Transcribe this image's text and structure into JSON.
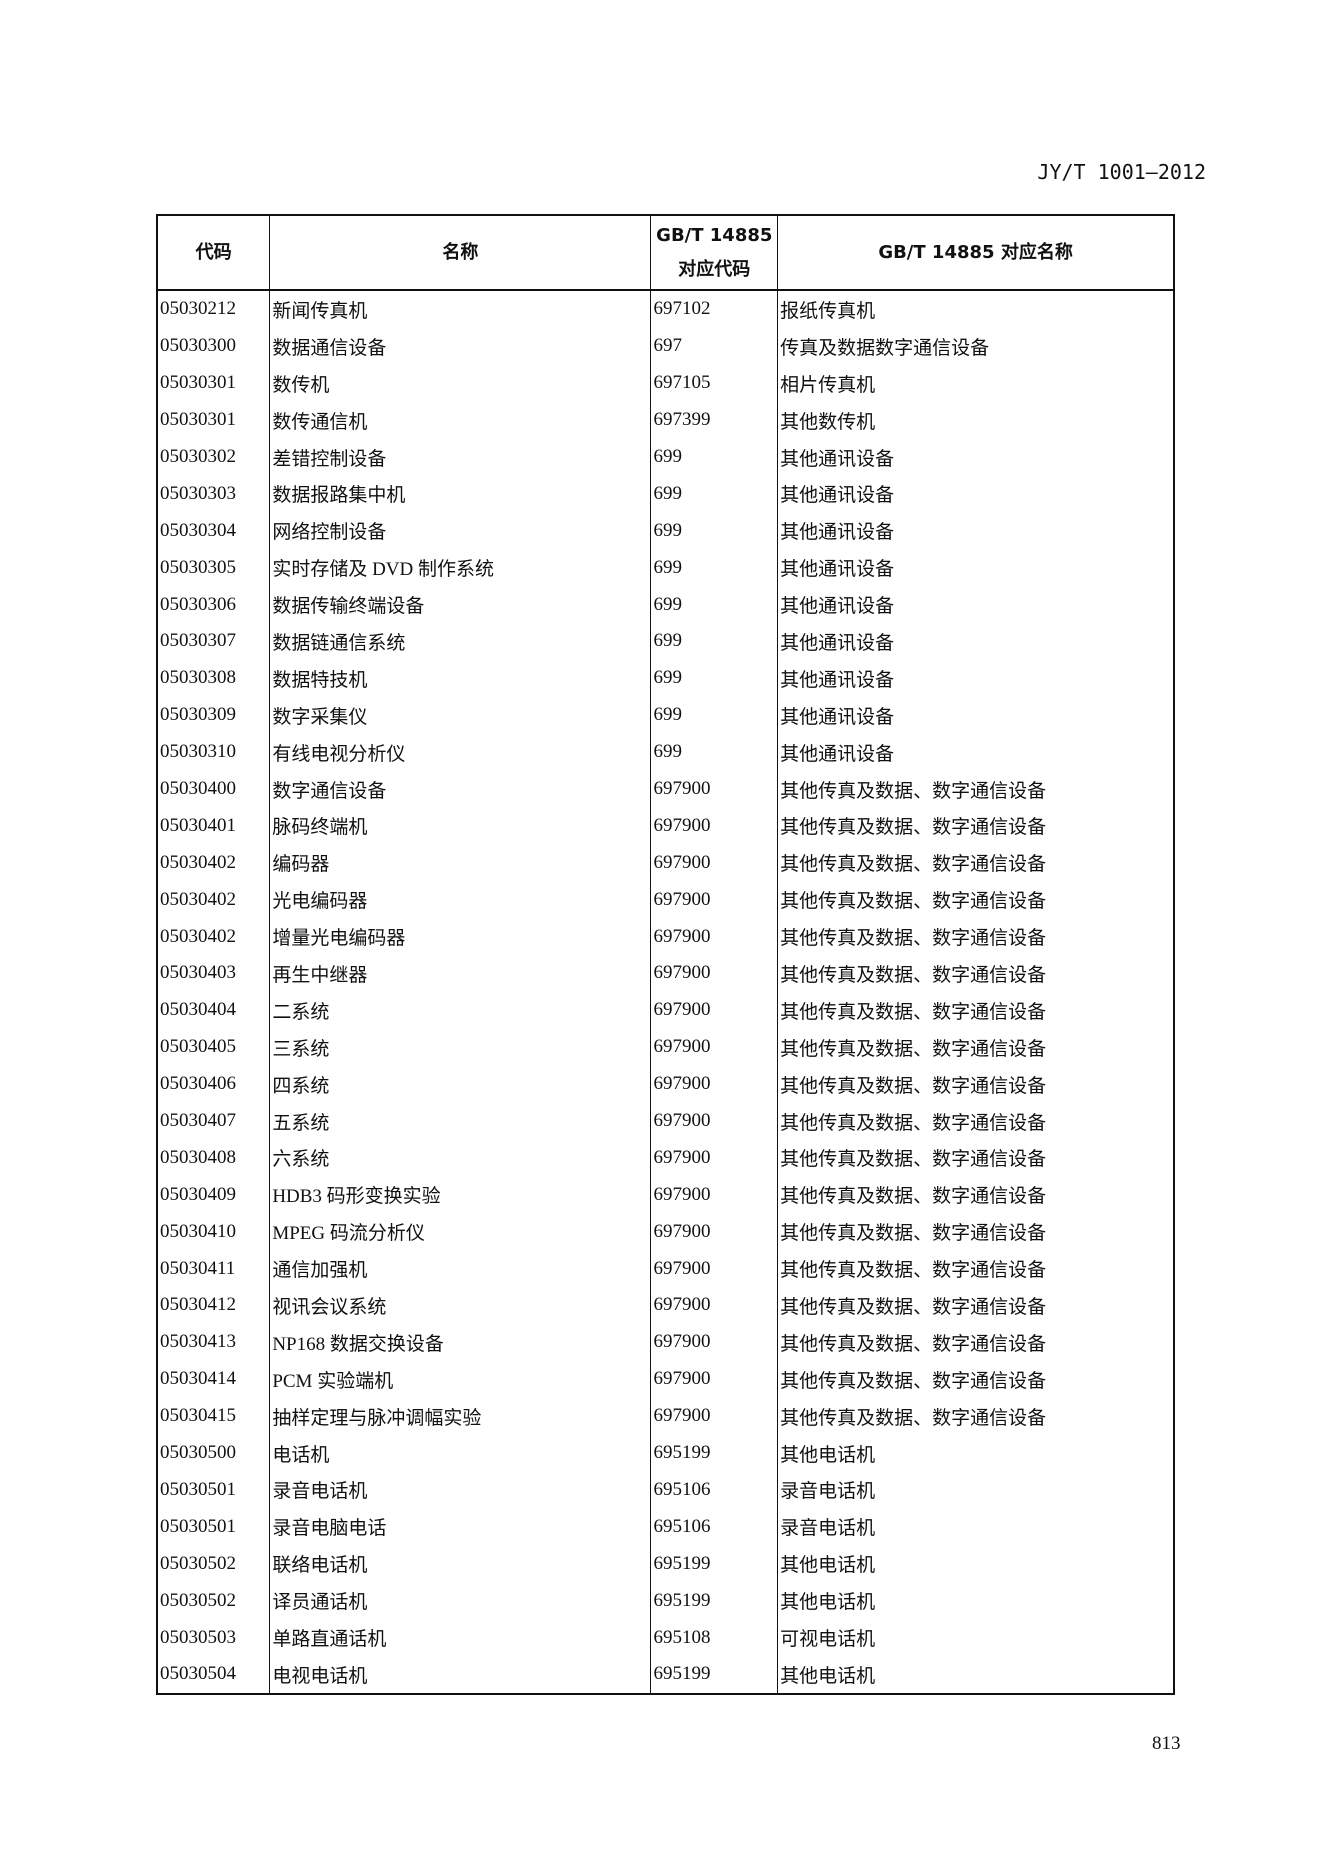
{
  "header": {
    "standard": "JY/T 1001—2012"
  },
  "table": {
    "columns": [
      "代码",
      "名称",
      "GB/T 14885\n对应代码",
      "GB/T 14885 对应名称"
    ],
    "rows": [
      [
        "05030212",
        "新闻传真机",
        "697102",
        "报纸传真机"
      ],
      [
        "05030300",
        "数据通信设备",
        "697",
        "传真及数据数字通信设备"
      ],
      [
        "05030301",
        "数传机",
        "697105",
        "相片传真机"
      ],
      [
        "05030301",
        "数传通信机",
        "697399",
        "其他数传机"
      ],
      [
        "05030302",
        "差错控制设备",
        "699",
        "其他通讯设备"
      ],
      [
        "05030303",
        "数据报路集中机",
        "699",
        "其他通讯设备"
      ],
      [
        "05030304",
        "网络控制设备",
        "699",
        "其他通讯设备"
      ],
      [
        "05030305",
        "实时存储及 DVD 制作系统",
        "699",
        "其他通讯设备"
      ],
      [
        "05030306",
        "数据传输终端设备",
        "699",
        "其他通讯设备"
      ],
      [
        "05030307",
        "数据链通信系统",
        "699",
        "其他通讯设备"
      ],
      [
        "05030308",
        "数据特技机",
        "699",
        "其他通讯设备"
      ],
      [
        "05030309",
        "数字采集仪",
        "699",
        "其他通讯设备"
      ],
      [
        "05030310",
        "有线电视分析仪",
        "699",
        "其他通讯设备"
      ],
      [
        "05030400",
        "数字通信设备",
        "697900",
        "其他传真及数据、数字通信设备"
      ],
      [
        "05030401",
        "脉码终端机",
        "697900",
        "其他传真及数据、数字通信设备"
      ],
      [
        "05030402",
        "编码器",
        "697900",
        "其他传真及数据、数字通信设备"
      ],
      [
        "05030402",
        "光电编码器",
        "697900",
        "其他传真及数据、数字通信设备"
      ],
      [
        "05030402",
        "增量光电编码器",
        "697900",
        "其他传真及数据、数字通信设备"
      ],
      [
        "05030403",
        "再生中继器",
        "697900",
        "其他传真及数据、数字通信设备"
      ],
      [
        "05030404",
        "二系统",
        "697900",
        "其他传真及数据、数字通信设备"
      ],
      [
        "05030405",
        "三系统",
        "697900",
        "其他传真及数据、数字通信设备"
      ],
      [
        "05030406",
        "四系统",
        "697900",
        "其他传真及数据、数字通信设备"
      ],
      [
        "05030407",
        "五系统",
        "697900",
        "其他传真及数据、数字通信设备"
      ],
      [
        "05030408",
        "六系统",
        "697900",
        "其他传真及数据、数字通信设备"
      ],
      [
        "05030409",
        "HDB3 码形变换实验",
        "697900",
        "其他传真及数据、数字通信设备"
      ],
      [
        "05030410",
        "MPEG 码流分析仪",
        "697900",
        "其他传真及数据、数字通信设备"
      ],
      [
        "05030411",
        "通信加强机",
        "697900",
        "其他传真及数据、数字通信设备"
      ],
      [
        "05030412",
        "视讯会议系统",
        "697900",
        "其他传真及数据、数字通信设备"
      ],
      [
        "05030413",
        "NP168 数据交换设备",
        "697900",
        "其他传真及数据、数字通信设备"
      ],
      [
        "05030414",
        "PCM 实验端机",
        "697900",
        "其他传真及数据、数字通信设备"
      ],
      [
        "05030415",
        "抽样定理与脉冲调幅实验",
        "697900",
        "其他传真及数据、数字通信设备"
      ],
      [
        "05030500",
        "电话机",
        "695199",
        "其他电话机"
      ],
      [
        "05030501",
        "录音电话机",
        "695106",
        "录音电话机"
      ],
      [
        "05030501",
        "录音电脑电话",
        "695106",
        "录音电话机"
      ],
      [
        "05030502",
        "联络电话机",
        "695199",
        "其他电话机"
      ],
      [
        "05030502",
        "译员通话机",
        "695199",
        "其他电话机"
      ],
      [
        "05030503",
        "单路直通话机",
        "695108",
        "可视电话机"
      ],
      [
        "05030504",
        "电视电话机",
        "695199",
        "其他电话机"
      ]
    ]
  },
  "footer": {
    "page_number": "813"
  }
}
